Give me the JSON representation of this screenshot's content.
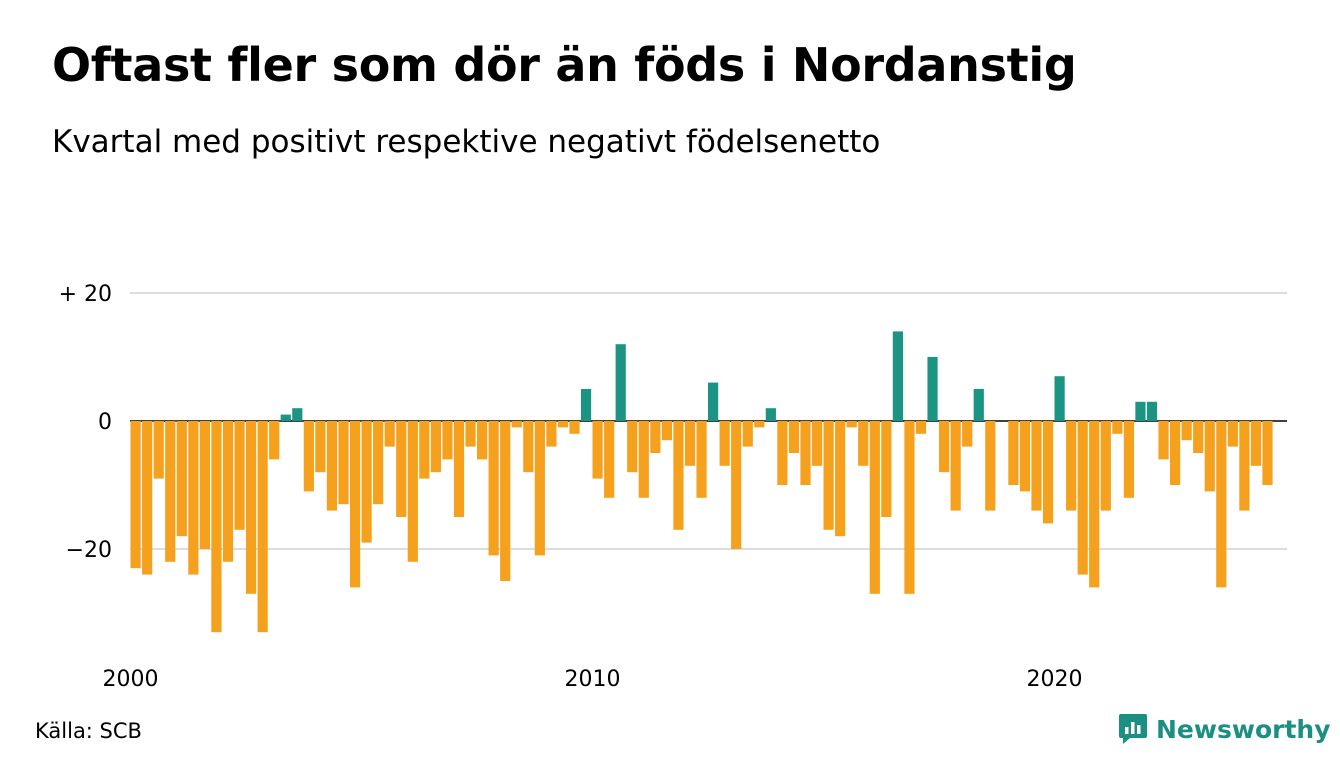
{
  "title": "Oftast fler som dör än föds i Nordanstig",
  "subtitle": "Kvartal med positivt respektive negativt födelsenetto",
  "source": "Källa: SCB",
  "brand": "Newsworthy",
  "colors": {
    "positive": "#1b9484",
    "negative": "#f5a11d",
    "gridline": "#dddddd",
    "zeroline": "#000000"
  },
  "chart_data": {
    "type": "bar",
    "ylim": [
      -35,
      22
    ],
    "yticks": [
      {
        "value": 20,
        "label": "+ 20"
      },
      {
        "value": 0,
        "label": "0"
      },
      {
        "value": -20,
        "label": "−20"
      }
    ],
    "xticks": [
      {
        "index": 0,
        "label": "2000"
      },
      {
        "index": 40,
        "label": "2010"
      },
      {
        "index": 80,
        "label": "2020"
      }
    ],
    "grid": true,
    "start_year": 2000,
    "period": "quarter",
    "values": [
      -23,
      -24,
      -9,
      -22,
      -18,
      -24,
      -20,
      -33,
      -22,
      -17,
      -27,
      -33,
      -6,
      1,
      2,
      -11,
      -8,
      -14,
      -13,
      -26,
      -19,
      -13,
      -4,
      -15,
      -22,
      -9,
      -8,
      -6,
      -15,
      -4,
      -6,
      -21,
      -25,
      -1,
      -8,
      -21,
      -4,
      -1,
      -2,
      5,
      -9,
      -12,
      12,
      -8,
      -12,
      -5,
      -3,
      -17,
      -7,
      -12,
      6,
      -7,
      -20,
      -4,
      -1,
      2,
      -10,
      -5,
      -10,
      -7,
      -17,
      -18,
      -1,
      -7,
      -27,
      -15,
      14,
      -27,
      -2,
      10,
      -8,
      -14,
      -4,
      5,
      -14,
      0,
      -10,
      -11,
      -14,
      -16,
      7,
      -14,
      -24,
      -26,
      -14,
      -2,
      -12,
      3,
      3,
      -6,
      -10,
      -3,
      -5,
      -11,
      -26,
      -4,
      -14,
      -7,
      -10
    ]
  }
}
